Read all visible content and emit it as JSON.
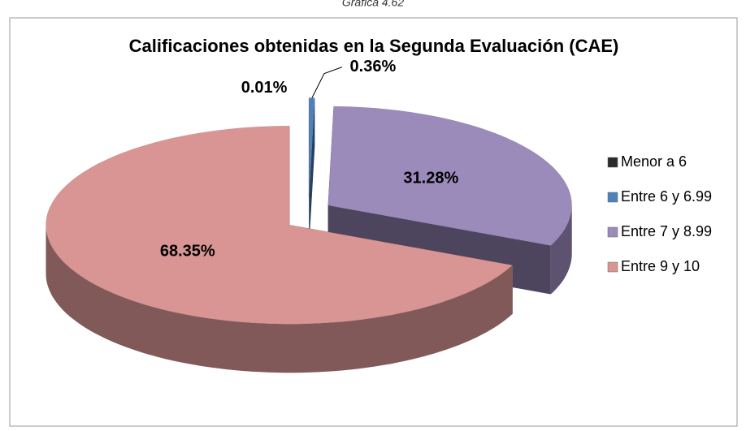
{
  "chart_data": {
    "type": "pie",
    "caption": "Gráfica 4.62",
    "title": "Calificaciones obtenidas en la Segunda Evaluación (CAE)",
    "categories": [
      "Menor a 6",
      "Entre 6 y 6.99",
      "Entre 7 y 8.99",
      "Entre 9 y 10"
    ],
    "values": [
      0.01,
      0.36,
      31.28,
      68.35
    ],
    "value_labels": [
      "0.01%",
      "0.36%",
      "31.28%",
      "68.35%"
    ],
    "colors": [
      "#2b2b2b",
      "#4f81bd",
      "#9b8bbb",
      "#d99594"
    ],
    "legend": "right"
  }
}
